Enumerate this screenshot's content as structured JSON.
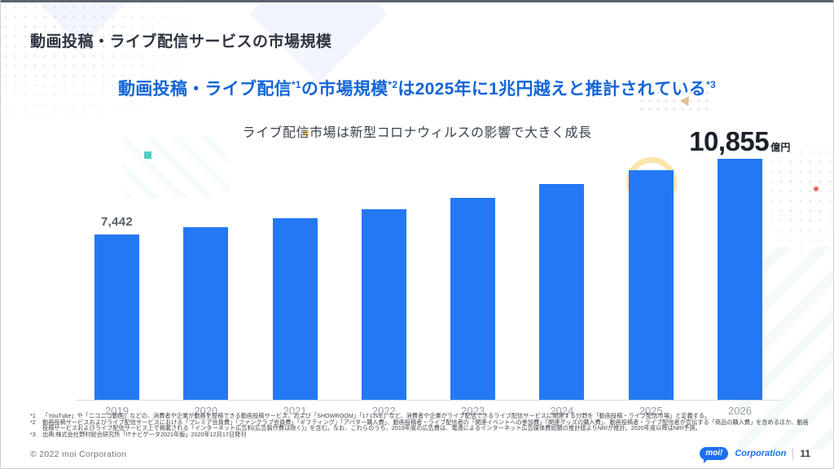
{
  "slide": {
    "title": "動画投稿・ライブ配信サービスの市場規模",
    "headline": {
      "seg1": "動画投稿・ライブ配信",
      "sup1": "*1",
      "seg2": "の市場規模",
      "sup2": "*2",
      "seg3": "は2025年に1兆円越えと推計されている",
      "sup3": "*3"
    },
    "subtitle": "ライブ配信市場は新型コロナウィルスの影響で大きく成長"
  },
  "chart_data": {
    "type": "bar",
    "title": "動画投稿・ライブ配信サービスの市場規模",
    "categories": [
      "2019",
      "2020",
      "2021",
      "2022",
      "2023",
      "2024",
      "2025",
      "2026"
    ],
    "values": [
      7442,
      7770,
      8180,
      8580,
      9090,
      9715,
      10340,
      10855
    ],
    "value_labels": [
      {
        "index": 0,
        "text": "7,442",
        "unit": "",
        "size": "small"
      },
      {
        "index": 7,
        "text": "10,855",
        "unit": "億円",
        "size": "big"
      }
    ],
    "unit": "億円",
    "ylim": [
      0,
      11000
    ],
    "grid": false,
    "legend": "none",
    "bar_color": "#2478f4"
  },
  "footnotes": [
    {
      "marker": "*1",
      "text": "「YouTube」や「ニコニコ動画」などの、消費者や企業が動画を投稿できる動画投稿サービス、および「SHOWROOM」「17 LIVE」など、消費者や企業がライブ配信できるライブ配信サービスに関連する分野を「動画投稿・ライブ配信市場」と定義する。"
    },
    {
      "marker": "*2",
      "text": "動画投稿サービスおよびライブ配信サービスにおける「プレミア会員費」「ファンクラブ会員費」「ギフティング」「アバター購入費」、動画投稿者・ライブ配信者の「関連イベントへの参加費」「関連グッズの購入費」、動画投稿者・ライブ配信者が宣伝する「商品の購入費」を含めるほか、動画投稿サービスおよびライブ配信サービス上で掲載される「インターネット広告料(広告製作費は除く)」を含む。なお、これらのうち、2019年度の広告費は、電通によるインターネット広告媒体費総額の推計値よりNRIが推計。2020年度以降はNRI予測。"
    },
    {
      "marker": "*3",
      "text": "出典:株式会社野村総合研究所「ITナビゲータ2021年版」2020年12月17日発刊"
    }
  ],
  "footer": {
    "copyright": "© 2022 moi Corporation",
    "logo": {
      "bubble_text": "moi!",
      "suffix": "Corporation"
    },
    "page_number": "11"
  },
  "colors": {
    "bar_blue": "#2478f4",
    "headline_blue": "#1365d6",
    "logo_blue": "#1d6ff2"
  }
}
